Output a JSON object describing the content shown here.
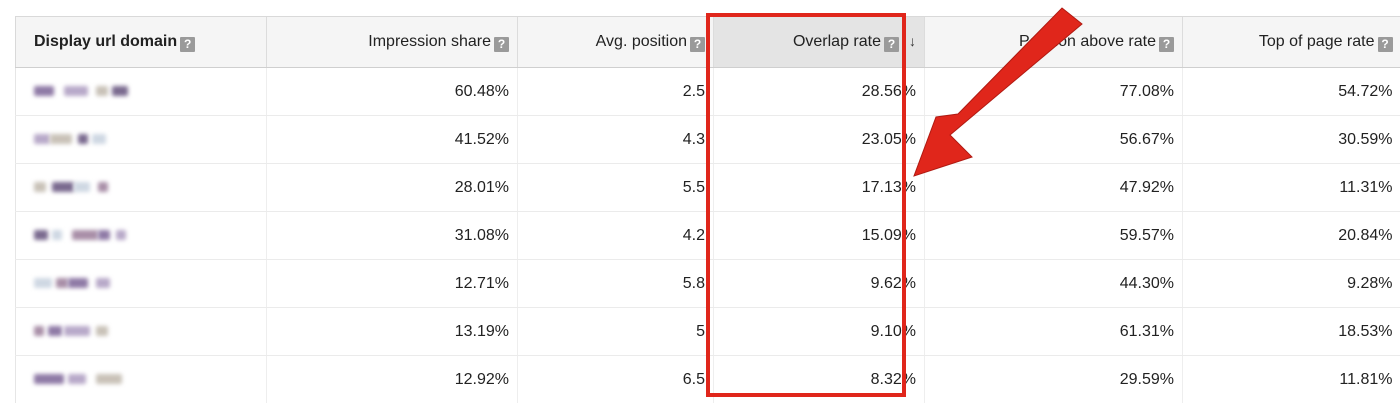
{
  "table": {
    "columns": [
      {
        "label": "Display url domain",
        "hint_icon": "help-icon"
      },
      {
        "label": "Impression share",
        "hint_icon": "help-icon"
      },
      {
        "label": "Avg. position",
        "hint_icon": "help-icon"
      },
      {
        "label": "Overlap rate",
        "hint_icon": "help-icon",
        "sort_icon": "arrow-down-icon",
        "sorted": true
      },
      {
        "label": "Position above rate",
        "hint_icon": "help-icon"
      },
      {
        "label": "Top of page rate",
        "hint_icon": "help-icon"
      }
    ],
    "rows": [
      {
        "impression_share": "60.48%",
        "avg_position": "2.5",
        "overlap_rate": "28.56%",
        "position_above_rate": "77.08%",
        "top_of_page_rate": "54.72%"
      },
      {
        "impression_share": "41.52%",
        "avg_position": "4.3",
        "overlap_rate": "23.05%",
        "position_above_rate": "56.67%",
        "top_of_page_rate": "30.59%"
      },
      {
        "impression_share": "28.01%",
        "avg_position": "5.5",
        "overlap_rate": "17.13%",
        "position_above_rate": "47.92%",
        "top_of_page_rate": "11.31%"
      },
      {
        "impression_share": "31.08%",
        "avg_position": "4.2",
        "overlap_rate": "15.09%",
        "position_above_rate": "59.57%",
        "top_of_page_rate": "20.84%"
      },
      {
        "impression_share": "12.71%",
        "avg_position": "5.8",
        "overlap_rate": "9.62%",
        "position_above_rate": "44.30%",
        "top_of_page_rate": "9.28%"
      },
      {
        "impression_share": "13.19%",
        "avg_position": "5",
        "overlap_rate": "9.10%",
        "position_above_rate": "61.31%",
        "top_of_page_rate": "18.53%"
      },
      {
        "impression_share": "12.92%",
        "avg_position": "6.5",
        "overlap_rate": "8.32%",
        "position_above_rate": "29.59%",
        "top_of_page_rate": "11.81%"
      }
    ]
  },
  "colors": {
    "highlight": "#e0261b",
    "blurred_domain_palette": [
      "#8f7aa6",
      "#b8a9c9",
      "#c9c2b8",
      "#7a6a8f",
      "#cfd8e3",
      "#a98fa8"
    ]
  }
}
